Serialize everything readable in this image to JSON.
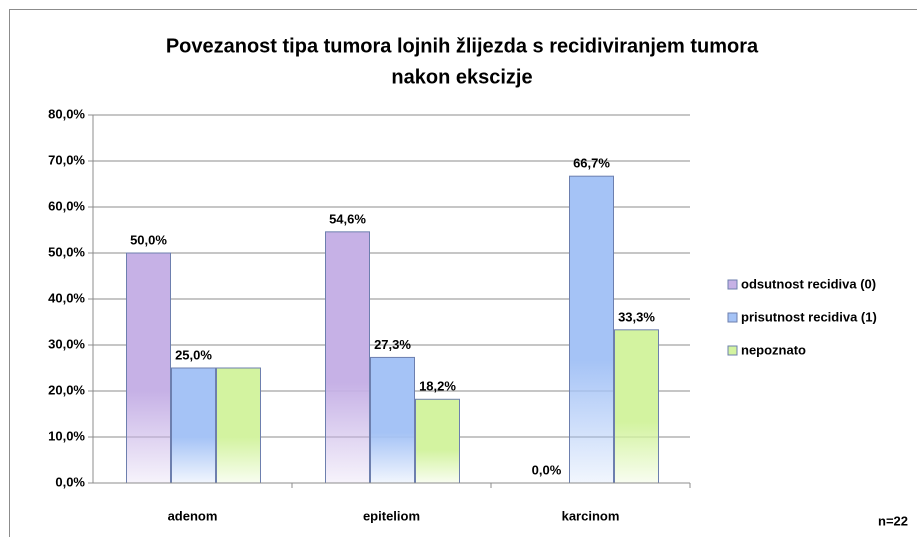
{
  "chart_data": {
    "type": "bar",
    "title": [
      "Povezanost tipa tumora lojnih žlijezda s recidiviranjem tumora",
      "nakon ekscizje"
    ],
    "categories": [
      "adenom",
      "epiteliom",
      "karcinom"
    ],
    "series": [
      {
        "name": "odsutnost recidiva (0)",
        "color": "#c6b1e6",
        "values": [
          50.0,
          54.6,
          0.0
        ],
        "value_labels": [
          "50,0%",
          "54,6%",
          "0,0%"
        ]
      },
      {
        "name": "prisutnost recidiva (1)",
        "color": "#a5c3f6",
        "values": [
          25.0,
          27.3,
          66.7
        ],
        "value_labels": [
          "25,0%",
          "27,3%",
          "66,7%"
        ]
      },
      {
        "name": "nepoznato",
        "color": "#d3f3a0",
        "values": [
          25.0,
          18.2,
          33.3
        ],
        "value_labels": [
          "",
          "18,2%",
          "33,3%"
        ]
      }
    ],
    "ylim": [
      0,
      80
    ],
    "yticks": [
      {
        "value": 0,
        "label": "0,0%"
      },
      {
        "value": 10,
        "label": "10,0%"
      },
      {
        "value": 20,
        "label": "20,0%"
      },
      {
        "value": 30,
        "label": "30,0%"
      },
      {
        "value": 40,
        "label": "40,0%"
      },
      {
        "value": 50,
        "label": "50,0%"
      },
      {
        "value": 60,
        "label": "60,0%"
      },
      {
        "value": 70,
        "label": "70,0%"
      },
      {
        "value": 80,
        "label": "80,0%"
      }
    ],
    "grid": true,
    "legend": "right",
    "annotation": "n=22"
  }
}
